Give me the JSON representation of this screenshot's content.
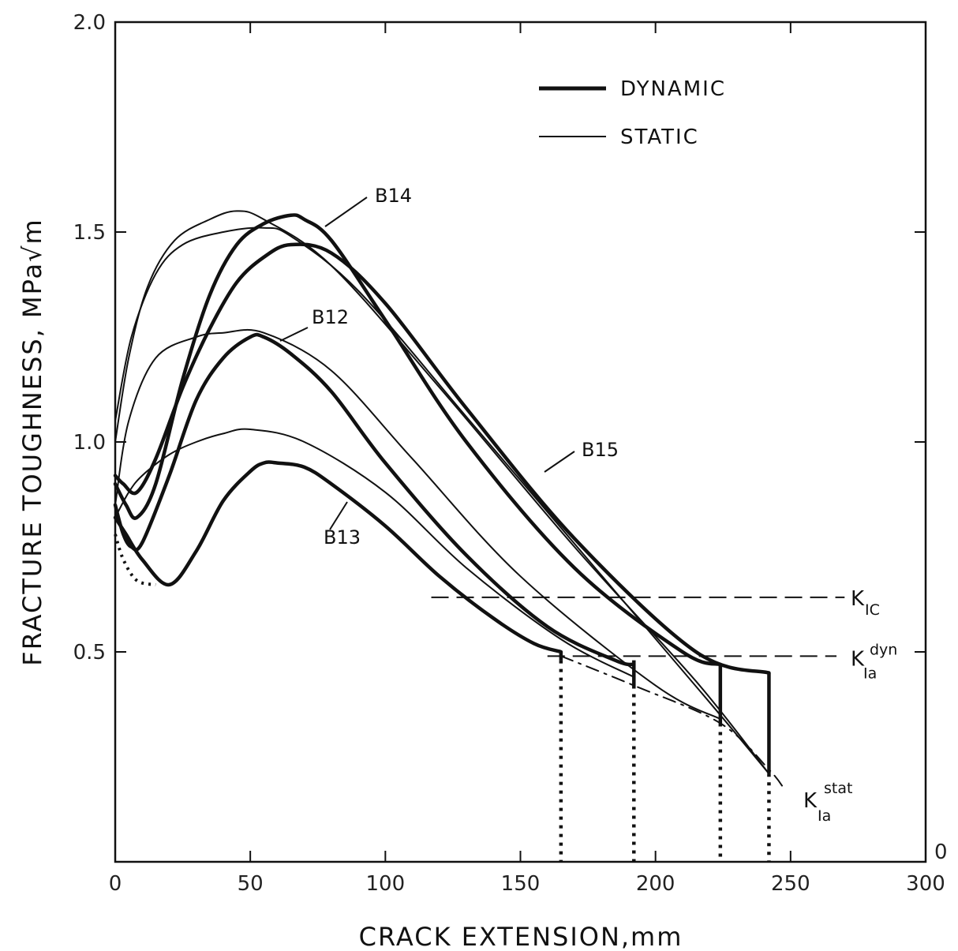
{
  "chart_data": {
    "type": "line",
    "xlabel": "CRACK EXTENSION,mm",
    "ylabel": "FRACTURE TOUGHNESS, MPa√m",
    "xlim": [
      0,
      300
    ],
    "ylim": [
      0,
      2.0
    ],
    "x_ticks": [
      0,
      50,
      100,
      150,
      200,
      250,
      300
    ],
    "y_ticks": [
      0.5,
      1.0,
      1.5,
      2.0
    ],
    "x_tick_labels": [
      "0",
      "50",
      "100",
      "150",
      "200",
      "250",
      "300"
    ],
    "y_tick_labels": [
      "0.5",
      "1.0",
      "1.5",
      "2.0"
    ],
    "right_axis_zero_label": "0",
    "grid": false,
    "legend": {
      "position": "top-right",
      "entries": [
        {
          "label": "DYNAMIC",
          "style": "thick"
        },
        {
          "label": "STATIC",
          "style": "thin"
        }
      ]
    },
    "curve_labels": [
      "B14",
      "B12",
      "B15",
      "B13"
    ],
    "reference_lines": [
      {
        "label_main": "K",
        "label_sub": "IC",
        "y": 0.63,
        "x_range": [
          117,
          270
        ]
      },
      {
        "label_main": "K",
        "label_sub": "Ia",
        "label_sup": "dyn",
        "y": 0.49,
        "x_range": [
          160,
          267
        ]
      }
    ],
    "kia_stat_label": {
      "main": "K",
      "sub": "Ia",
      "sup": "stat"
    },
    "series": [
      {
        "label": "B13",
        "style": "dynamic",
        "x": [
          0,
          4,
          10,
          20,
          30,
          40,
          50,
          55,
          60,
          70,
          80,
          100,
          120,
          140,
          155,
          165
        ],
        "y": [
          0.82,
          0.78,
          0.72,
          0.66,
          0.74,
          0.86,
          0.93,
          0.95,
          0.95,
          0.94,
          0.9,
          0.8,
          0.68,
          0.58,
          0.52,
          0.5
        ]
      },
      {
        "label": "B13",
        "style": "static",
        "x": [
          0,
          5,
          10,
          20,
          30,
          40,
          50,
          70,
          100,
          130,
          165,
          192
        ],
        "y": [
          0.82,
          0.88,
          0.92,
          0.97,
          1.0,
          1.02,
          1.03,
          1.0,
          0.88,
          0.7,
          0.53,
          0.44
        ]
      },
      {
        "label": "B12",
        "style": "dynamic",
        "x": [
          0,
          3,
          6,
          10,
          20,
          30,
          40,
          50,
          55,
          65,
          80,
          100,
          130,
          160,
          185,
          192
        ],
        "y": [
          0.85,
          0.78,
          0.75,
          0.76,
          0.92,
          1.1,
          1.2,
          1.25,
          1.25,
          1.21,
          1.12,
          0.95,
          0.73,
          0.56,
          0.48,
          0.47
        ]
      },
      {
        "label": "B12",
        "style": "static",
        "x": [
          0,
          5,
          15,
          30,
          40,
          55,
          80,
          110,
          150,
          200,
          224
        ],
        "y": [
          0.85,
          1.05,
          1.2,
          1.25,
          1.26,
          1.26,
          1.17,
          0.96,
          0.68,
          0.42,
          0.34
        ]
      },
      {
        "label": "B14",
        "style": "dynamic",
        "x": [
          0,
          4,
          8,
          15,
          25,
          35,
          45,
          55,
          65,
          70,
          80,
          100,
          130,
          170,
          210,
          224
        ],
        "y": [
          0.9,
          0.85,
          0.82,
          0.9,
          1.15,
          1.35,
          1.47,
          1.52,
          1.54,
          1.53,
          1.48,
          1.29,
          1.0,
          0.7,
          0.5,
          0.47
        ]
      },
      {
        "label": "B14",
        "style": "static",
        "x": [
          0,
          5,
          12,
          22,
          35,
          45,
          55,
          80,
          120,
          170,
          215,
          242
        ],
        "y": [
          1.0,
          1.2,
          1.37,
          1.48,
          1.53,
          1.55,
          1.53,
          1.42,
          1.13,
          0.75,
          0.43,
          0.21
        ]
      },
      {
        "label": "B15",
        "style": "dynamic",
        "x": [
          0,
          3,
          8,
          15,
          25,
          35,
          45,
          55,
          65,
          80,
          100,
          130,
          170,
          215,
          242
        ],
        "y": [
          0.92,
          0.9,
          0.88,
          0.96,
          1.13,
          1.27,
          1.38,
          1.44,
          1.47,
          1.45,
          1.33,
          1.08,
          0.77,
          0.5,
          0.45
        ]
      },
      {
        "label": "B15",
        "style": "static",
        "x": [
          0,
          6,
          15,
          25,
          40,
          55,
          65,
          90,
          130,
          175,
          220,
          242
        ],
        "y": [
          1.05,
          1.25,
          1.4,
          1.47,
          1.5,
          1.51,
          1.49,
          1.36,
          1.06,
          0.72,
          0.38,
          0.21
        ]
      },
      {
        "label": "K_Ia_stat",
        "style": "envelope",
        "x": [
          165,
          192,
          224,
          242,
          248
        ],
        "y": [
          0.49,
          0.42,
          0.33,
          0.22,
          0.17
        ]
      }
    ],
    "arrest_points": [
      {
        "x": 165,
        "y_top": 0.5,
        "y_bottom": 0.48
      },
      {
        "x": 192,
        "y_top": 0.48,
        "y_bottom": 0.42
      },
      {
        "x": 224,
        "y_top": 0.47,
        "y_bottom": 0.33
      },
      {
        "x": 242,
        "y_top": 0.45,
        "y_bottom": 0.21
      }
    ],
    "dotted_drops_x": [
      165,
      192,
      224,
      242
    ]
  }
}
